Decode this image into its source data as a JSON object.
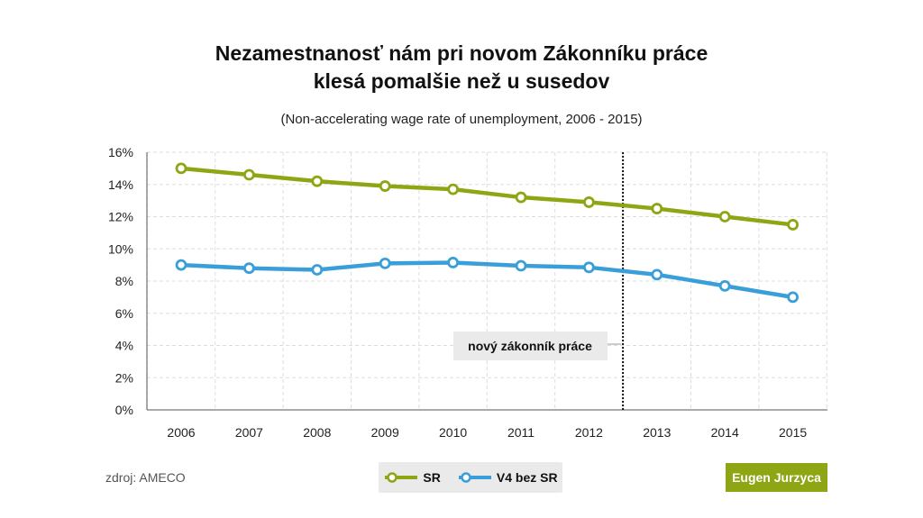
{
  "header": {
    "title_line1": "Nezamestnanosť nám pri novom Zákonníku práce",
    "title_line2": "klesá pomalšie než u susedov",
    "subtitle": "(Non-accelerating wage rate of unemployment, 2006 - 2015)"
  },
  "footer": {
    "source": "zdroj: AMECO",
    "author": "Eugen Jurzyca"
  },
  "colors": {
    "sr": "#8fa614",
    "v4": "#3a9fd8",
    "grid": "#dddddd",
    "annotation_bg": "#eaeaea"
  },
  "chart_data": {
    "type": "line",
    "x": [
      "2006",
      "2007",
      "2008",
      "2009",
      "2010",
      "2011",
      "2012",
      "2013",
      "2014",
      "2015"
    ],
    "series": [
      {
        "name": "SR",
        "values": [
          15.0,
          14.6,
          14.2,
          13.9,
          13.7,
          13.2,
          12.9,
          12.5,
          12.0,
          11.5
        ]
      },
      {
        "name": "V4 bez SR",
        "values": [
          9.0,
          8.8,
          8.7,
          9.1,
          9.15,
          8.95,
          8.85,
          8.4,
          7.7,
          7.0
        ]
      }
    ],
    "ylim": [
      0,
      16
    ],
    "yticks": [
      "0%",
      "2%",
      "4%",
      "6%",
      "8%",
      "10%",
      "12%",
      "14%",
      "16%"
    ],
    "grid": true,
    "legend_position": "bottom-center",
    "annotation": {
      "label": "nový zákonník práce",
      "x_between": [
        "2012",
        "2013"
      ]
    }
  }
}
